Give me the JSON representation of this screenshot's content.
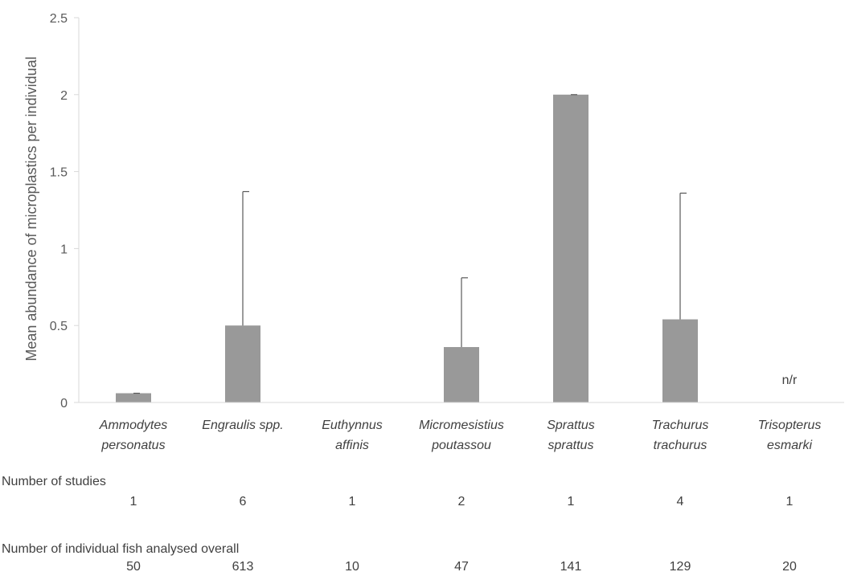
{
  "chart_data": {
    "type": "bar",
    "ylabel": "Mean abundance of microplastics per individual",
    "ylim": [
      0,
      2.5
    ],
    "yticks": [
      "0",
      "0.5",
      "1",
      "1.5",
      "2",
      "2.5"
    ],
    "grid": false,
    "bar_color": "#999999",
    "categories": [
      {
        "line1": "Ammodytes",
        "line2": "personatus"
      },
      {
        "line1": "Engraulis spp.",
        "line2": ""
      },
      {
        "line1": "Euthynnus",
        "line2": "affinis"
      },
      {
        "line1": "Micromesistius",
        "line2": "poutassou"
      },
      {
        "line1": "Sprattus",
        "line2": "sprattus"
      },
      {
        "line1": "Trachurus",
        "line2": "trachurus"
      },
      {
        "line1": "Trisopterus",
        "line2": "esmarki"
      }
    ],
    "values": [
      0.06,
      0.5,
      0,
      0.36,
      2.0,
      0.54,
      null
    ],
    "error_upper": [
      0.06,
      1.37,
      0,
      0.81,
      2.0,
      1.36,
      null
    ],
    "annotations": [
      {
        "category_index": 6,
        "text": "n/r"
      }
    ]
  },
  "rows": [
    {
      "title": "Number of studies",
      "values": [
        "1",
        "6",
        "1",
        "2",
        "1",
        "4",
        "1"
      ]
    },
    {
      "title": "Number of individual fish analysed overall",
      "values": [
        "50",
        "613",
        "10",
        "47",
        "141",
        "129",
        "20"
      ]
    }
  ]
}
